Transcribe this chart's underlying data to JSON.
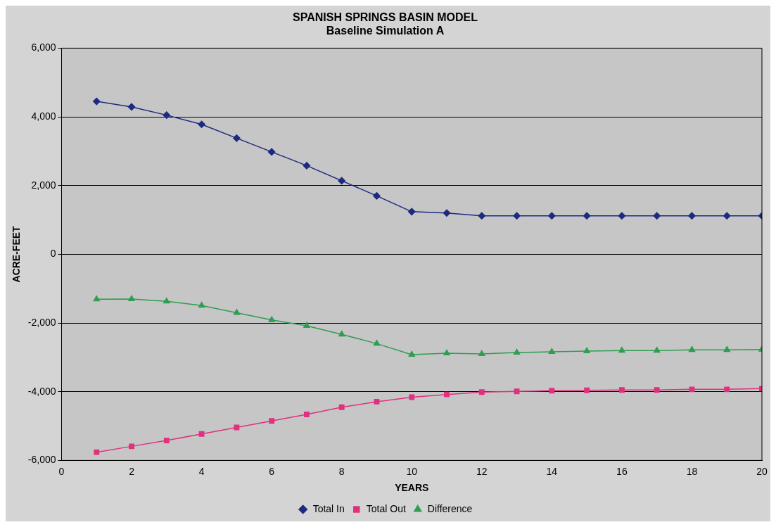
{
  "chart_data": {
    "type": "line",
    "title": "SPANISH SPRINGS BASIN MODEL",
    "subtitle": "Baseline Simulation A",
    "xlabel": "YEARS",
    "ylabel": "ACRE-FEET",
    "x": [
      1,
      2,
      3,
      4,
      5,
      6,
      7,
      8,
      9,
      10,
      11,
      12,
      13,
      14,
      15,
      16,
      17,
      18,
      19,
      20
    ],
    "series": [
      {
        "name": "Total In",
        "color": "#1c2a80",
        "marker": "diamond",
        "values": [
          4450,
          4290,
          4050,
          3780,
          3380,
          2980,
          2580,
          2140,
          1700,
          1240,
          1200,
          1120,
          1120,
          1120,
          1120,
          1120,
          1120,
          1120,
          1120,
          1120
        ]
      },
      {
        "name": "Total Out",
        "color": "#e0307f",
        "marker": "square",
        "values": [
          -5760,
          -5590,
          -5420,
          -5230,
          -5040,
          -4850,
          -4660,
          -4450,
          -4290,
          -4160,
          -4080,
          -4010,
          -3990,
          -3970,
          -3960,
          -3950,
          -3950,
          -3930,
          -3930,
          -3910
        ]
      },
      {
        "name": "Difference",
        "color": "#2e9e50",
        "marker": "triangle",
        "values": [
          -1310,
          -1300,
          -1370,
          -1490,
          -1700,
          -1910,
          -2080,
          -2330,
          -2600,
          -2920,
          -2880,
          -2900,
          -2860,
          -2840,
          -2820,
          -2800,
          -2800,
          -2780,
          -2780,
          -2770
        ]
      }
    ],
    "xlim": [
      0,
      20
    ],
    "xticks": [
      0,
      2,
      4,
      6,
      8,
      10,
      12,
      14,
      16,
      18,
      20
    ],
    "ylim": [
      -6000,
      6000
    ],
    "yticks": [
      {
        "value": -6000,
        "label": "-6,000"
      },
      {
        "value": -4000,
        "label": "-4,000"
      },
      {
        "value": -2000,
        "label": "-2,000"
      },
      0,
      {
        "value": 2000,
        "label": "2,000"
      },
      {
        "value": 4000,
        "label": "4,000"
      },
      {
        "value": 6000,
        "label": "6,000"
      }
    ],
    "grid": "y",
    "legend": "bottom",
    "line_style": "solid"
  }
}
